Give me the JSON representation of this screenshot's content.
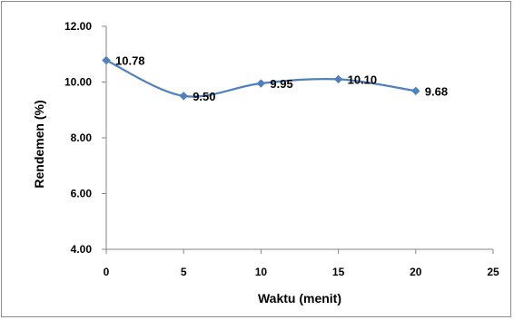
{
  "chart_data": {
    "type": "line",
    "title": "",
    "xlabel": "Waktu (menit)",
    "ylabel": "Rendemen (%)",
    "xlim": [
      0,
      25
    ],
    "ylim": [
      4,
      12
    ],
    "x_ticks": [
      "0",
      "5",
      "10",
      "15",
      "20",
      "25"
    ],
    "y_ticks": [
      "4.00",
      "6.00",
      "8.00",
      "10.00",
      "12.00"
    ],
    "grid": false,
    "legend": "none",
    "smoothed": true,
    "series": [
      {
        "color": "#4f81bd",
        "marker": "diamond",
        "x": [
          0,
          5,
          10,
          15,
          20
        ],
        "values": [
          10.78,
          9.5,
          9.95,
          10.1,
          9.68
        ],
        "labels": [
          "10.78",
          "9.50",
          "9.95",
          "10.10",
          "9.68"
        ]
      }
    ]
  }
}
